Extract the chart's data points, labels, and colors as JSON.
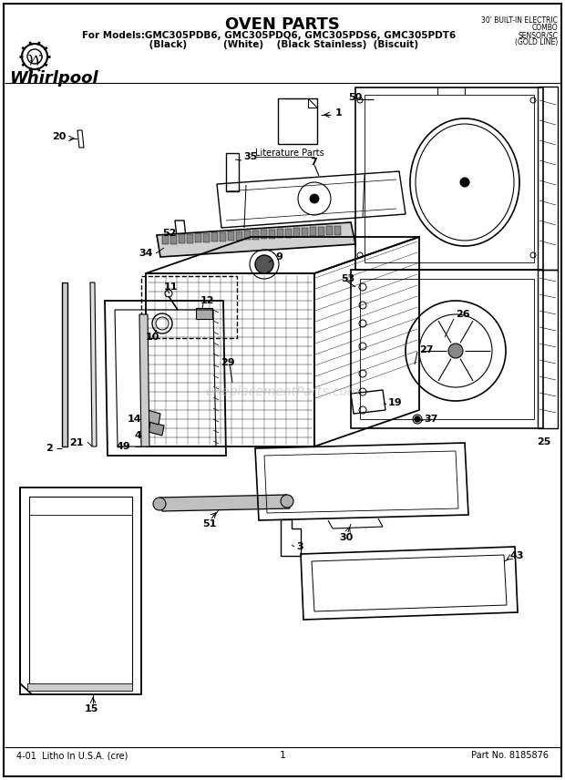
{
  "title": "OVEN PARTS",
  "subtitle_line1": "For Models:GMC305PDB6, GMC305PDQ6, GMC305PDS6, GMC305PDT6",
  "subtitle_line2": "         (Black)           (White)    (Black Stainless)  (Biscuit)",
  "top_right_line1": "30' BUILT-IN ELECTRIC",
  "top_right_line2": "COMBO",
  "top_right_line3": "SENSOR/SC",
  "top_right_line4": "(GOLD LINE)",
  "footer_left": "4-01  Litho In U.S.A. (cre)",
  "footer_center": "1",
  "footer_right": "Part No. 8185876",
  "watermark": "eReplacementParts.com",
  "bg_color": "#ffffff",
  "border_color": "#000000",
  "text_color": "#000000",
  "whirlpool_logo": "Whirlpool",
  "figwidth": 6.2,
  "figheight": 8.56,
  "dpi": 100
}
